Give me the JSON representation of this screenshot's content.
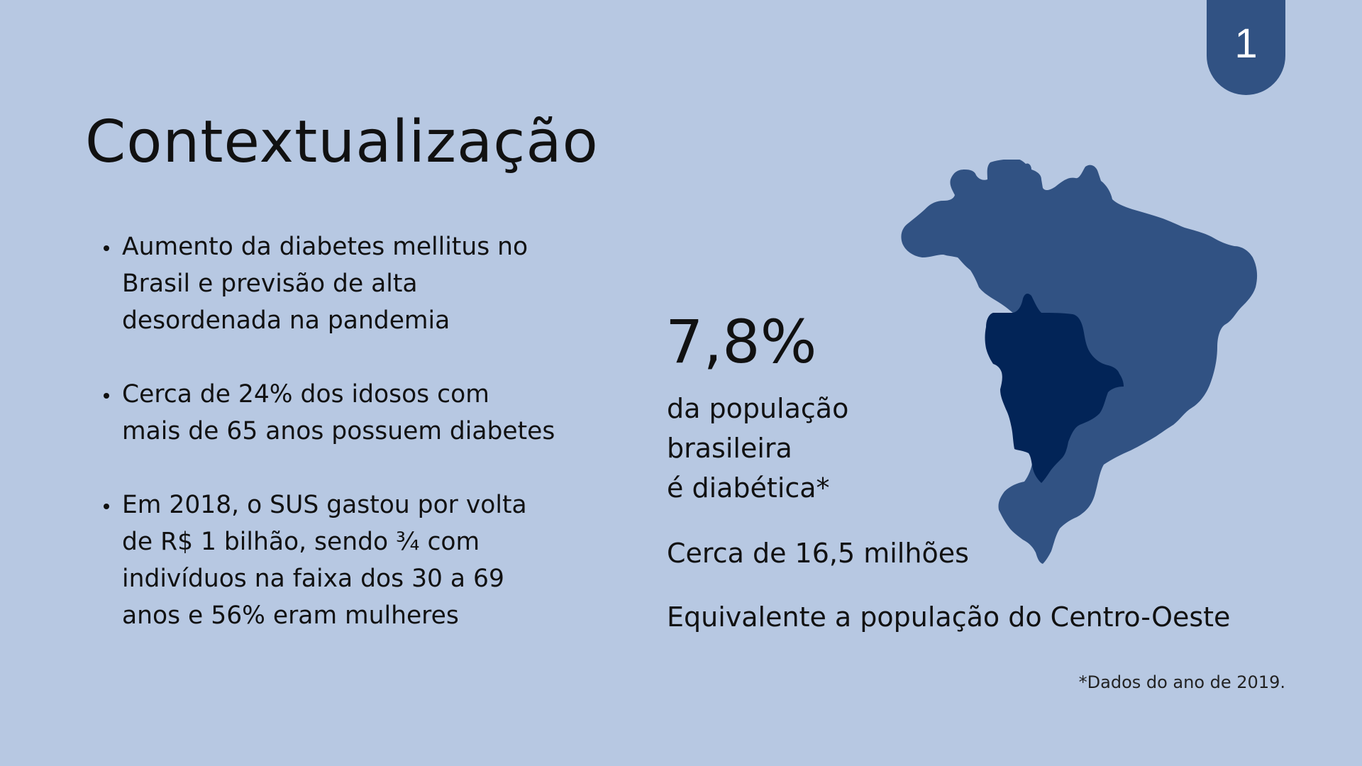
{
  "page_number": "1",
  "title": "Contextualização",
  "bullets": [
    {
      "lines": [
        "Aumento da diabetes mellitus no",
        "Brasil e previsão de alta",
        "desordenada na pandemia"
      ]
    },
    {
      "lines": [
        "Cerca de 24% dos idosos com",
        "mais de 65 anos possuem diabetes"
      ]
    },
    {
      "lines": [
        "Em 2018, o SUS gastou por volta",
        "de R$ 1 bilhão, sendo ¾ com",
        "indivíduos na faixa dos 30 a 69",
        "anos e 56% eram mulheres"
      ]
    }
  ],
  "stat": {
    "value": "7,8%",
    "desc_lines": [
      "da população",
      "brasileira",
      "é diabética*"
    ],
    "count": "Cerca de 16,5 milhões",
    "equivalent": "Equivalente a população do Centro-Oeste"
  },
  "footnote": "*Dados do ano de 2019.",
  "colors": {
    "background": "#b7c8e2",
    "accent": "#315283",
    "map_region_highlight": "#022457"
  },
  "icons": {
    "map": "brazil-map-icon",
    "highlight": "centro-oeste-region-icon"
  }
}
